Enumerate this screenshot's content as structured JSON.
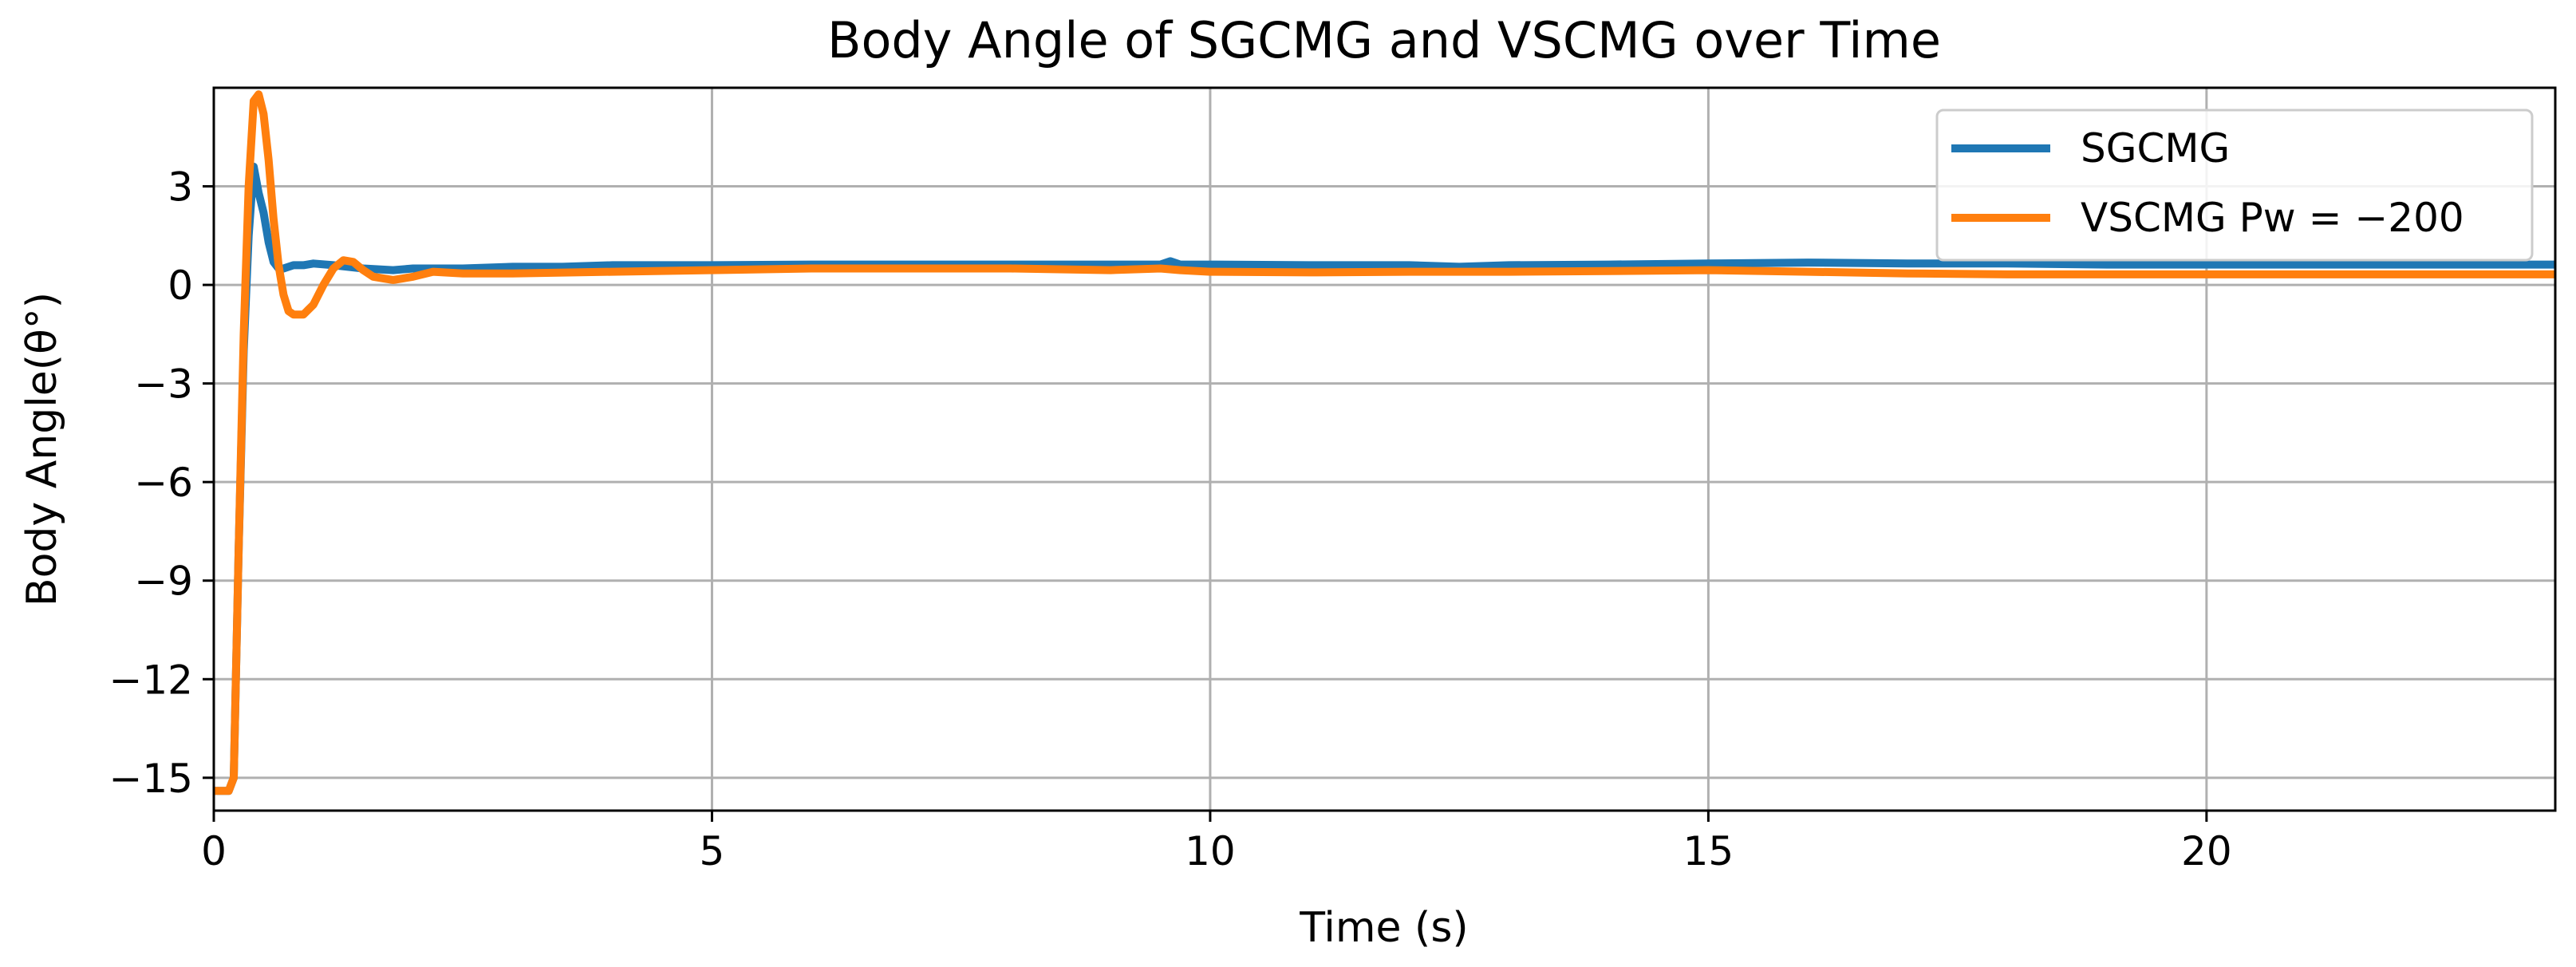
{
  "chart_data": {
    "type": "line",
    "title": "Body Angle of SGCMG and VSCMG over Time",
    "xlabel": "Time (s)",
    "ylabel": "Body Angle(θ°)",
    "xlim": [
      0,
      23.5
    ],
    "ylim": [
      -16,
      6
    ],
    "xticks": [
      0,
      5,
      10,
      15,
      20
    ],
    "xtick_labels": [
      "0",
      "5",
      "10",
      "15",
      "20"
    ],
    "yticks": [
      3,
      0,
      -3,
      -6,
      -9,
      -12,
      -15
    ],
    "ytick_labels": [
      "3",
      "0",
      "−3",
      "−6",
      "−9",
      "−12",
      "−15"
    ],
    "grid": true,
    "legend_position": "top-right",
    "series": [
      {
        "name": "SGCMG",
        "color": "#1f77b4",
        "x": [
          0,
          0.15,
          0.2,
          0.25,
          0.3,
          0.35,
          0.4,
          0.45,
          0.5,
          0.55,
          0.6,
          0.65,
          0.7,
          0.8,
          0.9,
          1.0,
          1.2,
          1.5,
          1.8,
          2.0,
          2.5,
          3.0,
          3.5,
          4.0,
          5.0,
          6.0,
          7.0,
          8.0,
          9.0,
          9.5,
          9.6,
          9.7,
          10.0,
          11.0,
          12.0,
          12.5,
          13.0,
          14.0,
          15.0,
          16.0,
          17.0,
          18.0,
          19.0,
          20.0,
          21.0,
          22.0,
          23.0,
          23.5
        ],
        "values": [
          -15.4,
          -15.4,
          -15.0,
          -8.0,
          -2.0,
          1.5,
          3.6,
          2.8,
          2.2,
          1.3,
          0.7,
          0.5,
          0.5,
          0.6,
          0.6,
          0.65,
          0.6,
          0.5,
          0.45,
          0.5,
          0.5,
          0.55,
          0.55,
          0.6,
          0.6,
          0.62,
          0.62,
          0.62,
          0.62,
          0.62,
          0.72,
          0.62,
          0.62,
          0.6,
          0.6,
          0.55,
          0.6,
          0.62,
          0.65,
          0.68,
          0.65,
          0.65,
          0.62,
          0.62,
          0.62,
          0.62,
          0.62,
          0.62
        ]
      },
      {
        "name": "VSCMG Pw = −200",
        "color": "#ff7f0e",
        "x": [
          0,
          0.15,
          0.2,
          0.25,
          0.3,
          0.35,
          0.4,
          0.45,
          0.5,
          0.55,
          0.6,
          0.65,
          0.7,
          0.75,
          0.8,
          0.9,
          1.0,
          1.1,
          1.2,
          1.3,
          1.4,
          1.5,
          1.6,
          1.7,
          1.8,
          1.9,
          2.0,
          2.2,
          2.5,
          3.0,
          4.0,
          5.0,
          6.0,
          7.0,
          8.0,
          9.0,
          9.5,
          9.7,
          10.0,
          11.0,
          12.0,
          13.0,
          14.0,
          15.0,
          16.0,
          17.0,
          18.0,
          19.0,
          20.0,
          21.0,
          22.0,
          23.0,
          23.5
        ],
        "values": [
          -15.4,
          -15.4,
          -15.0,
          -8.0,
          -1.5,
          3.0,
          5.6,
          5.8,
          5.2,
          3.8,
          2.0,
          0.6,
          -0.3,
          -0.8,
          -0.9,
          -0.9,
          -0.6,
          0.0,
          0.5,
          0.75,
          0.7,
          0.45,
          0.25,
          0.2,
          0.15,
          0.2,
          0.25,
          0.4,
          0.35,
          0.35,
          0.4,
          0.45,
          0.5,
          0.5,
          0.5,
          0.45,
          0.5,
          0.45,
          0.4,
          0.38,
          0.4,
          0.4,
          0.42,
          0.45,
          0.4,
          0.35,
          0.32,
          0.32,
          0.32,
          0.32,
          0.32,
          0.32,
          0.32
        ]
      }
    ]
  }
}
